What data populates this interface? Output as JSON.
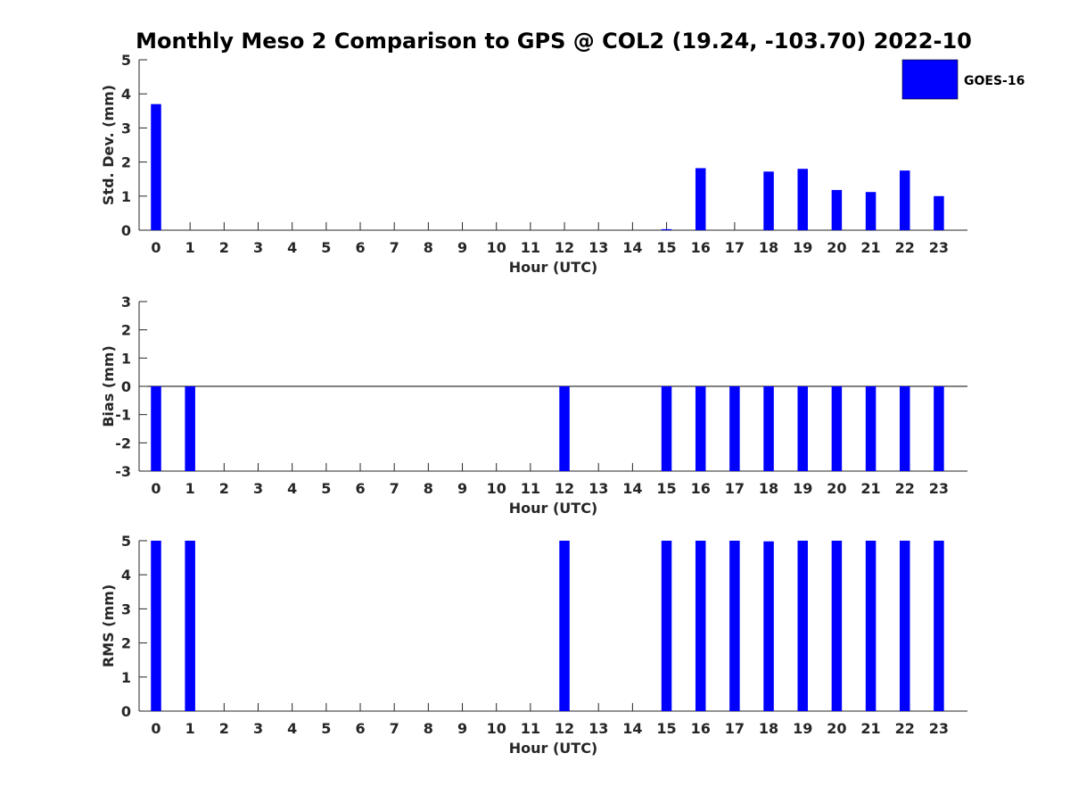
{
  "title": "Monthly Meso 2 Comparison to GPS @ COL2 (19.24, -103.70) 2022-10",
  "legend": {
    "label": "GOES-16",
    "color": "#0000ff",
    "placement": "top-right"
  },
  "chart_data": [
    {
      "type": "bar",
      "xlabel": "Hour (UTC)",
      "ylabel": "Std. Dev. (mm)",
      "ylim": [
        0,
        5
      ],
      "yticks": [
        0,
        1,
        2,
        3,
        4,
        5
      ],
      "categories": [
        "0",
        "1",
        "2",
        "3",
        "4",
        "5",
        "6",
        "7",
        "8",
        "9",
        "10",
        "11",
        "12",
        "13",
        "14",
        "15",
        "16",
        "17",
        "18",
        "19",
        "20",
        "21",
        "22",
        "23"
      ],
      "series": [
        {
          "name": "GOES-16",
          "color": "#0000ff",
          "values": [
            3.7,
            null,
            null,
            null,
            null,
            null,
            null,
            null,
            null,
            null,
            null,
            null,
            null,
            null,
            null,
            0.03,
            1.82,
            null,
            1.72,
            1.8,
            1.18,
            1.12,
            1.75,
            1.0
          ]
        }
      ]
    },
    {
      "type": "bar",
      "xlabel": "Hour (UTC)",
      "ylabel": "Bias (mm)",
      "ylim": [
        -3,
        3
      ],
      "yticks": [
        -3,
        -2,
        -1,
        0,
        1,
        2,
        3
      ],
      "categories": [
        "0",
        "1",
        "2",
        "3",
        "4",
        "5",
        "6",
        "7",
        "8",
        "9",
        "10",
        "11",
        "12",
        "13",
        "14",
        "15",
        "16",
        "17",
        "18",
        "19",
        "20",
        "21",
        "22",
        "23"
      ],
      "series": [
        {
          "name": "GOES-16",
          "color": "#0000ff",
          "values": [
            -3,
            -3,
            null,
            null,
            null,
            null,
            null,
            null,
            null,
            null,
            null,
            null,
            -3,
            null,
            null,
            -3,
            -3,
            -3,
            -3,
            -3,
            -3,
            -3,
            -3,
            -3
          ]
        }
      ]
    },
    {
      "type": "bar",
      "xlabel": "Hour (UTC)",
      "ylabel": "RMS (mm)",
      "ylim": [
        0,
        5
      ],
      "yticks": [
        0,
        1,
        2,
        3,
        4,
        5
      ],
      "categories": [
        "0",
        "1",
        "2",
        "3",
        "4",
        "5",
        "6",
        "7",
        "8",
        "9",
        "10",
        "11",
        "12",
        "13",
        "14",
        "15",
        "16",
        "17",
        "18",
        "19",
        "20",
        "21",
        "22",
        "23"
      ],
      "series": [
        {
          "name": "GOES-16",
          "color": "#0000ff",
          "values": [
            5,
            5,
            null,
            null,
            null,
            null,
            null,
            null,
            null,
            null,
            null,
            null,
            5,
            null,
            null,
            5,
            5,
            5,
            4.98,
            5,
            5,
            5,
            5,
            5
          ]
        }
      ]
    }
  ]
}
